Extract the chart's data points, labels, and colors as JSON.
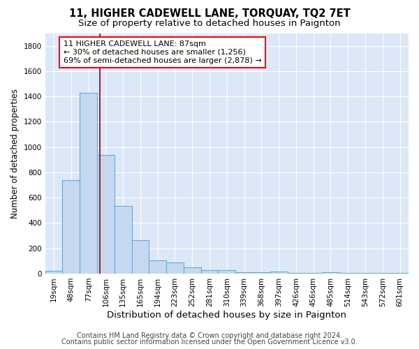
{
  "title": "11, HIGHER CADEWELL LANE, TORQUAY, TQ2 7ET",
  "subtitle": "Size of property relative to detached houses in Paignton",
  "xlabel": "Distribution of detached houses by size in Paignton",
  "ylabel": "Number of detached properties",
  "footnote1": "Contains HM Land Registry data © Crown copyright and database right 2024.",
  "footnote2": "Contains public sector information licensed under the Open Government Licence v3.0.",
  "bar_labels": [
    "19sqm",
    "48sqm",
    "77sqm",
    "106sqm",
    "135sqm",
    "165sqm",
    "194sqm",
    "223sqm",
    "252sqm",
    "281sqm",
    "310sqm",
    "339sqm",
    "368sqm",
    "397sqm",
    "426sqm",
    "456sqm",
    "485sqm",
    "514sqm",
    "543sqm",
    "572sqm",
    "601sqm"
  ],
  "bar_values": [
    22,
    740,
    1430,
    935,
    535,
    265,
    105,
    90,
    48,
    28,
    27,
    10,
    10,
    15,
    5,
    5,
    10,
    5,
    5,
    5,
    5
  ],
  "bar_color": "#c5d8f0",
  "bar_edgecolor": "#6aaad4",
  "bar_linewidth": 0.8,
  "vline_x": 2.68,
  "vline_color": "#8b0000",
  "vline_linewidth": 1.2,
  "annotation_text": "11 HIGHER CADEWELL LANE: 87sqm\n← 30% of detached houses are smaller (1,256)\n69% of semi-detached houses are larger (2,878) →",
  "annotation_box_facecolor": "white",
  "annotation_box_edgecolor": "red",
  "annotation_fontsize": 8.0,
  "ylim": [
    0,
    1900
  ],
  "fig_facecolor": "#ffffff",
  "plot_facecolor": "#dce8f8",
  "grid_color": "#ffffff",
  "title_fontsize": 10.5,
  "subtitle_fontsize": 9.5,
  "xlabel_fontsize": 9.5,
  "ylabel_fontsize": 8.5,
  "tick_fontsize": 7.5,
  "footnote_fontsize": 7.0,
  "footnote_color": "#444444"
}
